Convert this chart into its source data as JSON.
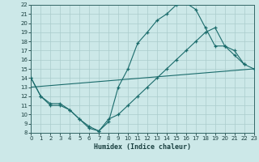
{
  "xlabel": "Humidex (Indice chaleur)",
  "xlim": [
    0,
    23
  ],
  "ylim": [
    8,
    22
  ],
  "xticks": [
    0,
    1,
    2,
    3,
    4,
    5,
    6,
    7,
    8,
    9,
    10,
    11,
    12,
    13,
    14,
    15,
    16,
    17,
    18,
    19,
    20,
    21,
    22,
    23
  ],
  "yticks": [
    8,
    9,
    10,
    11,
    12,
    13,
    14,
    15,
    16,
    17,
    18,
    19,
    20,
    21,
    22
  ],
  "bg_color": "#cce8e8",
  "grid_color": "#aacccc",
  "line_color": "#1a6b6b",
  "curve1_x": [
    0,
    1,
    2,
    3,
    4,
    5,
    6,
    7,
    8,
    9,
    10,
    11,
    12,
    13,
    14,
    15,
    16,
    17,
    18,
    19,
    20,
    21,
    22,
    23
  ],
  "curve1_y": [
    14,
    12,
    11,
    11,
    10.5,
    9.5,
    8.5,
    8.2,
    9.2,
    13,
    15,
    17.8,
    19,
    20.3,
    21,
    22,
    22.2,
    21.5,
    19.5,
    17.5,
    17.5,
    16.5,
    15.5,
    15
  ],
  "curve2_x": [
    0,
    1,
    2,
    3,
    4,
    5,
    6,
    7,
    8,
    9,
    10,
    11,
    12,
    13,
    14,
    15,
    16,
    17,
    18,
    19,
    20,
    21,
    22
  ],
  "curve2_y": [
    14,
    12,
    11.2,
    11.2,
    10.5,
    9.5,
    8.7,
    8.2,
    9.5,
    10,
    11,
    12,
    13,
    14,
    15,
    16,
    17,
    18,
    19,
    19.5,
    17.5,
    17,
    15.5
  ],
  "line3_x": [
    0,
    23
  ],
  "line3_y": [
    13,
    15
  ]
}
